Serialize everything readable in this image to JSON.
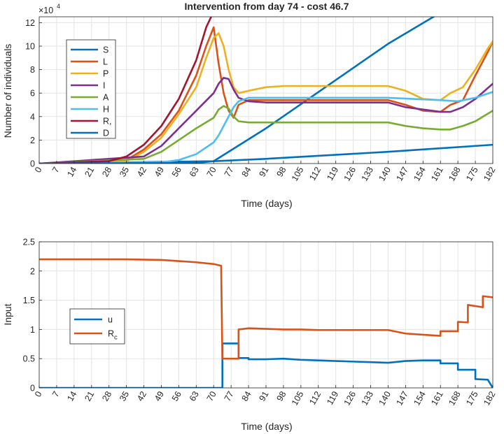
{
  "colors": {
    "blue": "#0072bd",
    "orange": "#d95319",
    "yellow": "#edb120",
    "purple": "#7e2f8e",
    "green": "#77ac30",
    "lightblue": "#4dbeee",
    "darkred": "#a2142f"
  },
  "chart_data": [
    {
      "type": "line",
      "title": "Intervention from day 74 - cost 46.7",
      "xlabel": "Time (days)",
      "ylabel": "Number of individuals",
      "exponent_label": "×10",
      "exponent_power": "4",
      "xlim": [
        0,
        182
      ],
      "ylim": [
        0,
        12.5
      ],
      "xticks": [
        "0",
        "7",
        "14",
        "21",
        "28",
        "35",
        "42",
        "49",
        "56",
        "63",
        "70",
        "77",
        "84",
        "91",
        "98",
        "105",
        "112",
        "119",
        "126",
        "133",
        "140",
        "147",
        "154",
        "161",
        "168",
        "175",
        "182"
      ],
      "yticks": [
        "0",
        "2",
        "4",
        "6",
        "8",
        "10",
        "12"
      ],
      "grid": true,
      "legend_position": "upper-left",
      "series": [
        {
          "name": "S",
          "color": "#0072bd",
          "points": [
            [
              0,
              0
            ],
            [
              70,
              0.2
            ],
            [
              91,
              3.0
            ],
            [
              140,
              10.2
            ],
            [
              182,
              15.5
            ]
          ]
        },
        {
          "name": "L",
          "color": "#d95319",
          "points": [
            [
              0,
              0
            ],
            [
              35,
              0.3
            ],
            [
              42,
              1.2
            ],
            [
              49,
              2.5
            ],
            [
              56,
              4.5
            ],
            [
              63,
              7.5
            ],
            [
              67,
              10.0
            ],
            [
              70,
              11.6
            ],
            [
              72,
              8.5
            ],
            [
              74,
              6.0
            ],
            [
              76,
              4.5
            ],
            [
              78,
              3.9
            ],
            [
              80,
              5.0
            ],
            [
              84,
              5.4
            ],
            [
              91,
              5.4
            ],
            [
              98,
              5.4
            ],
            [
              140,
              5.4
            ],
            [
              147,
              5.0
            ],
            [
              154,
              4.5
            ],
            [
              161,
              4.4
            ],
            [
              165,
              5.0
            ],
            [
              170,
              5.4
            ],
            [
              175,
              7.5
            ],
            [
              180,
              9.5
            ],
            [
              182,
              10.4
            ]
          ]
        },
        {
          "name": "P",
          "color": "#edb120",
          "points": [
            [
              0,
              0
            ],
            [
              35,
              0.2
            ],
            [
              42,
              1.0
            ],
            [
              49,
              2.2
            ],
            [
              56,
              4.2
            ],
            [
              63,
              6.5
            ],
            [
              67,
              9.0
            ],
            [
              70,
              10.7
            ],
            [
              72,
              11.1
            ],
            [
              74,
              10.0
            ],
            [
              76,
              8.0
            ],
            [
              78,
              6.5
            ],
            [
              80,
              6.0
            ],
            [
              84,
              6.2
            ],
            [
              91,
              6.5
            ],
            [
              98,
              6.6
            ],
            [
              105,
              6.6
            ],
            [
              140,
              6.6
            ],
            [
              147,
              6.2
            ],
            [
              154,
              5.5
            ],
            [
              161,
              5.4
            ],
            [
              165,
              6.0
            ],
            [
              170,
              6.5
            ],
            [
              175,
              8.0
            ],
            [
              180,
              9.8
            ],
            [
              182,
              10.4
            ]
          ]
        },
        {
          "name": "I",
          "color": "#7e2f8e",
          "points": [
            [
              0,
              0
            ],
            [
              42,
              0.6
            ],
            [
              49,
              1.5
            ],
            [
              56,
              3.0
            ],
            [
              63,
              4.5
            ],
            [
              70,
              6.0
            ],
            [
              72,
              6.8
            ],
            [
              74,
              7.3
            ],
            [
              76,
              7.2
            ],
            [
              78,
              6.3
            ],
            [
              80,
              5.6
            ],
            [
              84,
              5.3
            ],
            [
              91,
              5.2
            ],
            [
              140,
              5.2
            ],
            [
              147,
              4.8
            ],
            [
              154,
              4.6
            ],
            [
              161,
              4.4
            ],
            [
              165,
              4.4
            ],
            [
              170,
              4.8
            ],
            [
              175,
              5.5
            ],
            [
              182,
              6.8
            ]
          ]
        },
        {
          "name": "A",
          "color": "#77ac30",
          "points": [
            [
              0,
              0
            ],
            [
              42,
              0.4
            ],
            [
              49,
              1.0
            ],
            [
              56,
              2.0
            ],
            [
              63,
              3.0
            ],
            [
              70,
              3.9
            ],
            [
              72,
              4.6
            ],
            [
              74,
              4.9
            ],
            [
              76,
              4.7
            ],
            [
              78,
              4.0
            ],
            [
              80,
              3.6
            ],
            [
              84,
              3.5
            ],
            [
              91,
              3.5
            ],
            [
              140,
              3.5
            ],
            [
              147,
              3.2
            ],
            [
              154,
              3.0
            ],
            [
              161,
              2.9
            ],
            [
              165,
              2.9
            ],
            [
              170,
              3.2
            ],
            [
              175,
              3.6
            ],
            [
              182,
              4.5
            ]
          ]
        },
        {
          "name": "H",
          "color": "#4dbeee",
          "points": [
            [
              0,
              0
            ],
            [
              49,
              0.1
            ],
            [
              56,
              0.3
            ],
            [
              63,
              0.8
            ],
            [
              70,
              1.8
            ],
            [
              72,
              2.4
            ],
            [
              74,
              3.2
            ],
            [
              76,
              4.0
            ],
            [
              78,
              4.8
            ],
            [
              80,
              5.3
            ],
            [
              84,
              5.6
            ],
            [
              91,
              5.6
            ],
            [
              140,
              5.6
            ],
            [
              161,
              5.4
            ],
            [
              168,
              5.3
            ],
            [
              175,
              5.6
            ],
            [
              182,
              6.1
            ]
          ]
        },
        {
          "name": "R,",
          "color": "#a2142f",
          "points": [
            [
              0,
              0
            ],
            [
              28,
              0.2
            ],
            [
              35,
              0.6
            ],
            [
              42,
              1.6
            ],
            [
              49,
              3.2
            ],
            [
              56,
              5.5
            ],
            [
              63,
              8.8
            ],
            [
              67,
              11.6
            ],
            [
              69,
              12.5
            ]
          ]
        },
        {
          "name": "D",
          "color": "#0072bd",
          "points": [
            [
              0,
              0
            ],
            [
              63,
              0.05
            ],
            [
              70,
              0.2
            ],
            [
              91,
              0.4
            ],
            [
              140,
              1.0
            ],
            [
              182,
              1.6
            ]
          ]
        }
      ]
    },
    {
      "type": "line",
      "xlabel": "Time (days)",
      "ylabel": "Input",
      "xlim": [
        0,
        182
      ],
      "ylim": [
        0,
        2.5
      ],
      "xticks": [
        "0",
        "7",
        "14",
        "21",
        "28",
        "35",
        "42",
        "49",
        "56",
        "63",
        "70",
        "77",
        "84",
        "91",
        "98",
        "105",
        "112",
        "119",
        "126",
        "133",
        "140",
        "147",
        "154",
        "161",
        "168",
        "175",
        "182"
      ],
      "yticks": [
        "0",
        "0.5",
        "1",
        "1.5",
        "2",
        "2.5"
      ],
      "grid": true,
      "legend_position": "left",
      "series": [
        {
          "name": "u",
          "color": "#0072bd",
          "points": [
            [
              0,
              0
            ],
            [
              73.5,
              0
            ],
            [
              73.5,
              0.76
            ],
            [
              80,
              0.76
            ],
            [
              80,
              0.51
            ],
            [
              84,
              0.51
            ],
            [
              84,
              0.49
            ],
            [
              91,
              0.49
            ],
            [
              98,
              0.5
            ],
            [
              105,
              0.48
            ],
            [
              112,
              0.47
            ],
            [
              119,
              0.46
            ],
            [
              126,
              0.45
            ],
            [
              133,
              0.44
            ],
            [
              140,
              0.43
            ],
            [
              147,
              0.46
            ],
            [
              154,
              0.47
            ],
            [
              161,
              0.47
            ],
            [
              161,
              0.42
            ],
            [
              168,
              0.42
            ],
            [
              168,
              0.31
            ],
            [
              175,
              0.31
            ],
            [
              175,
              0.15
            ],
            [
              180,
              0.14
            ],
            [
              182,
              0.0
            ]
          ]
        },
        {
          "name": "R",
          "name_subscript": "c",
          "color": "#d95319",
          "points": [
            [
              0,
              2.2
            ],
            [
              35,
              2.2
            ],
            [
              49,
              2.19
            ],
            [
              56,
              2.17
            ],
            [
              63,
              2.15
            ],
            [
              70,
              2.12
            ],
            [
              73,
              2.09
            ],
            [
              73.5,
              0.5
            ],
            [
              80,
              0.5
            ],
            [
              80,
              1.0
            ],
            [
              84,
              1.02
            ],
            [
              91,
              1.01
            ],
            [
              98,
              1.0
            ],
            [
              105,
              1.0
            ],
            [
              112,
              0.99
            ],
            [
              119,
              0.99
            ],
            [
              126,
              0.99
            ],
            [
              133,
              0.99
            ],
            [
              140,
              0.99
            ],
            [
              147,
              0.93
            ],
            [
              154,
              0.91
            ],
            [
              161,
              0.89
            ],
            [
              161,
              0.97
            ],
            [
              168,
              0.97
            ],
            [
              168,
              1.13
            ],
            [
              172,
              1.12
            ],
            [
              172,
              1.42
            ],
            [
              175,
              1.4
            ],
            [
              178,
              1.38
            ],
            [
              178,
              1.57
            ],
            [
              182,
              1.55
            ]
          ]
        }
      ]
    }
  ]
}
